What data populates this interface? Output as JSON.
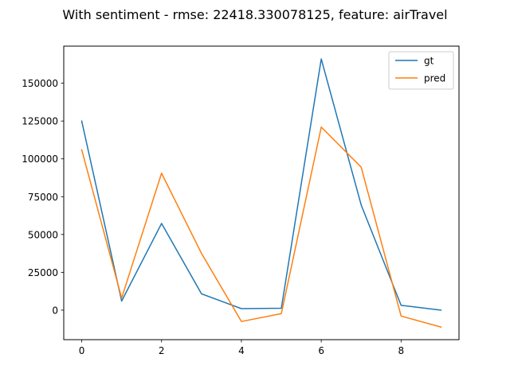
{
  "chart_data": {
    "type": "line",
    "title": "With sentiment - rmse: 22418.330078125, feature: airTravel",
    "xlabel": "",
    "ylabel": "",
    "xlim": [
      -0.45,
      9.45
    ],
    "ylim": [
      -19500,
      174500
    ],
    "x": [
      0,
      1,
      2,
      3,
      4,
      5,
      6,
      7,
      8,
      9
    ],
    "x_ticks": [
      0,
      2,
      4,
      6,
      8
    ],
    "y_ticks": [
      0,
      25000,
      50000,
      75000,
      100000,
      125000,
      150000
    ],
    "x_tick_labels": [
      "0",
      "2",
      "4",
      "6",
      "8"
    ],
    "y_tick_labels": [
      "0",
      "25000",
      "50000",
      "75000",
      "100000",
      "125000",
      "150000"
    ],
    "legend_position": "top-right",
    "grid": false,
    "series": [
      {
        "name": "gt",
        "color": "#1f77b4",
        "values": [
          125000,
          6000,
          57300,
          10800,
          1000,
          1300,
          166000,
          69500,
          3200,
          0
        ]
      },
      {
        "name": "pred",
        "color": "#ff7f0e",
        "values": [
          106000,
          8000,
          90500,
          37500,
          -7500,
          -2300,
          121000,
          94500,
          -3900,
          -11200
        ]
      }
    ]
  }
}
